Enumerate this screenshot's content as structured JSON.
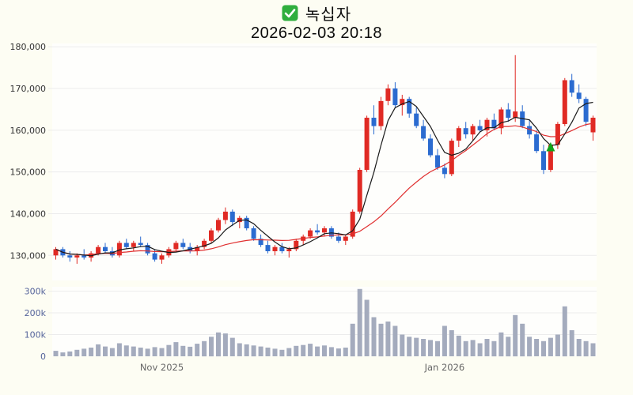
{
  "header": {
    "symbol": "녹십자",
    "datetime": "2026-02-03 20:18",
    "checkbox_checked": true
  },
  "colors": {
    "up": "#e02a24",
    "down": "#2b6bd0",
    "ma_fast": "#1a1a1a",
    "ma_slow": "#e03030",
    "volume_bar": "#a4abbd",
    "grid": "#ececec",
    "axis_text": "#333333",
    "volume_axis_text": "#55649b",
    "x_axis_text": "#666666",
    "background": "#fdfdf3",
    "plot_background": "#fefefc",
    "checkbox": "#2fae3e",
    "marker_green": "#12a31a"
  },
  "chart_data": {
    "type": "candlestick",
    "title": "녹십자",
    "subtitle": "2026-02-03 20:18",
    "grid": "horizontal",
    "legend": "none",
    "x_ticks": [
      {
        "label": "Nov 2025",
        "index": 15
      },
      {
        "label": "Jan 2026",
        "index": 55
      }
    ],
    "price": {
      "ylim": [
        124000,
        180800
      ],
      "yticks": [
        130000,
        140000,
        150000,
        160000,
        170000,
        180000
      ],
      "ytick_labels": [
        "130,000",
        "140,000",
        "150,000",
        "160,000",
        "170,000",
        "180,000"
      ],
      "ma_fast_window": 5,
      "ma_slow_window": 20,
      "marker": {
        "index": 70,
        "price": 156000,
        "shape": "triangle-up",
        "color": "#12a31a"
      },
      "candles": [
        [
          130000,
          132000,
          129000,
          131500
        ],
        [
          131500,
          132000,
          129500,
          130000
        ],
        [
          130000,
          131000,
          128500,
          129500
        ],
        [
          129500,
          130500,
          128000,
          130000
        ],
        [
          130000,
          131500,
          129000,
          129500
        ],
        [
          129500,
          131000,
          128500,
          130500
        ],
        [
          130500,
          132500,
          130000,
          132000
        ],
        [
          132000,
          133000,
          130500,
          131000
        ],
        [
          131000,
          132000,
          129500,
          130000
        ],
        [
          130000,
          133500,
          129500,
          133000
        ],
        [
          133000,
          134000,
          131500,
          132000
        ],
        [
          132000,
          133500,
          131000,
          133000
        ],
        [
          133000,
          134500,
          132000,
          132500
        ],
        [
          132500,
          133000,
          130000,
          130500
        ],
        [
          130500,
          131500,
          128500,
          129000
        ],
        [
          129000,
          130500,
          128000,
          130000
        ],
        [
          130000,
          132000,
          129500,
          131500
        ],
        [
          131500,
          133500,
          131000,
          133000
        ],
        [
          133000,
          134000,
          131500,
          132000
        ],
        [
          132000,
          133000,
          130500,
          131000
        ],
        [
          131000,
          132500,
          130000,
          132000
        ],
        [
          132000,
          134000,
          131500,
          133500
        ],
        [
          133500,
          136500,
          133000,
          136000
        ],
        [
          136000,
          139000,
          135500,
          138500
        ],
        [
          138500,
          141500,
          137500,
          140500
        ],
        [
          140500,
          141000,
          137000,
          138000
        ],
        [
          138000,
          139500,
          136500,
          139000
        ],
        [
          139000,
          139500,
          136000,
          136500
        ],
        [
          136500,
          137000,
          133500,
          134000
        ],
        [
          134000,
          135000,
          132000,
          132500
        ],
        [
          132500,
          133500,
          130500,
          131000
        ],
        [
          131000,
          132500,
          130000,
          132000
        ],
        [
          132000,
          133000,
          130500,
          131000
        ],
        [
          131000,
          132000,
          129500,
          131500
        ],
        [
          131500,
          134000,
          131000,
          133500
        ],
        [
          133500,
          135000,
          132500,
          134500
        ],
        [
          134500,
          136500,
          134000,
          136000
        ],
        [
          136000,
          137500,
          135000,
          135500
        ],
        [
          135500,
          137000,
          134500,
          136500
        ],
        [
          136500,
          137000,
          134000,
          134500
        ],
        [
          134500,
          135500,
          133000,
          133500
        ],
        [
          133500,
          135000,
          132500,
          134500
        ],
        [
          134500,
          141000,
          134000,
          140500
        ],
        [
          140500,
          151000,
          140000,
          150500
        ],
        [
          150500,
          163500,
          150000,
          163000
        ],
        [
          163000,
          166000,
          159000,
          161000
        ],
        [
          161000,
          168000,
          160000,
          167000
        ],
        [
          167000,
          171000,
          166000,
          170000
        ],
        [
          170000,
          171500,
          165500,
          166000
        ],
        [
          166000,
          168500,
          163500,
          167500
        ],
        [
          167500,
          168000,
          163000,
          164000
        ],
        [
          164000,
          165500,
          160500,
          161000
        ],
        [
          161000,
          162500,
          157500,
          158000
        ],
        [
          158000,
          159000,
          153500,
          154000
        ],
        [
          154000,
          155500,
          150500,
          151000
        ],
        [
          151000,
          152000,
          148500,
          149500
        ],
        [
          149500,
          158000,
          149000,
          157500
        ],
        [
          157500,
          161000,
          156000,
          160500
        ],
        [
          160500,
          162000,
          158000,
          159000
        ],
        [
          159000,
          161500,
          157500,
          161000
        ],
        [
          161000,
          162500,
          159500,
          160000
        ],
        [
          160000,
          163000,
          158500,
          162500
        ],
        [
          162500,
          164000,
          160000,
          160500
        ],
        [
          160500,
          165500,
          159000,
          165000
        ],
        [
          165000,
          166500,
          162000,
          163000
        ],
        [
          163000,
          178000,
          162000,
          164500
        ],
        [
          164500,
          166000,
          160500,
          161000
        ],
        [
          161000,
          162500,
          158000,
          159000
        ],
        [
          159000,
          160000,
          154500,
          155000
        ],
        [
          155000,
          156500,
          149500,
          150500
        ],
        [
          150500,
          157000,
          150000,
          156500
        ],
        [
          156500,
          162000,
          155500,
          161500
        ],
        [
          161500,
          172500,
          161000,
          172000
        ],
        [
          172000,
          173500,
          168000,
          169000
        ],
        [
          169000,
          171000,
          166500,
          167500
        ],
        [
          167500,
          168000,
          161000,
          162000
        ],
        [
          159500,
          163500,
          157500,
          163000
        ]
      ]
    },
    "volume": {
      "ylim": [
        0,
        320000
      ],
      "yticks": [
        0,
        100000,
        200000,
        300000
      ],
      "ytick_labels": [
        "0",
        "100k",
        "200k",
        "300k"
      ],
      "values": [
        25000,
        18000,
        22000,
        30000,
        35000,
        40000,
        55000,
        45000,
        38000,
        60000,
        50000,
        45000,
        40000,
        35000,
        42000,
        38000,
        52000,
        65000,
        48000,
        44000,
        58000,
        70000,
        90000,
        110000,
        105000,
        85000,
        60000,
        55000,
        50000,
        45000,
        40000,
        35000,
        30000,
        38000,
        48000,
        52000,
        58000,
        45000,
        50000,
        42000,
        36000,
        40000,
        150000,
        310000,
        260000,
        180000,
        150000,
        160000,
        140000,
        100000,
        90000,
        85000,
        80000,
        75000,
        70000,
        140000,
        120000,
        95000,
        70000,
        75000,
        60000,
        80000,
        70000,
        110000,
        90000,
        190000,
        150000,
        90000,
        80000,
        70000,
        85000,
        100000,
        230000,
        120000,
        80000,
        70000,
        60000
      ]
    }
  }
}
